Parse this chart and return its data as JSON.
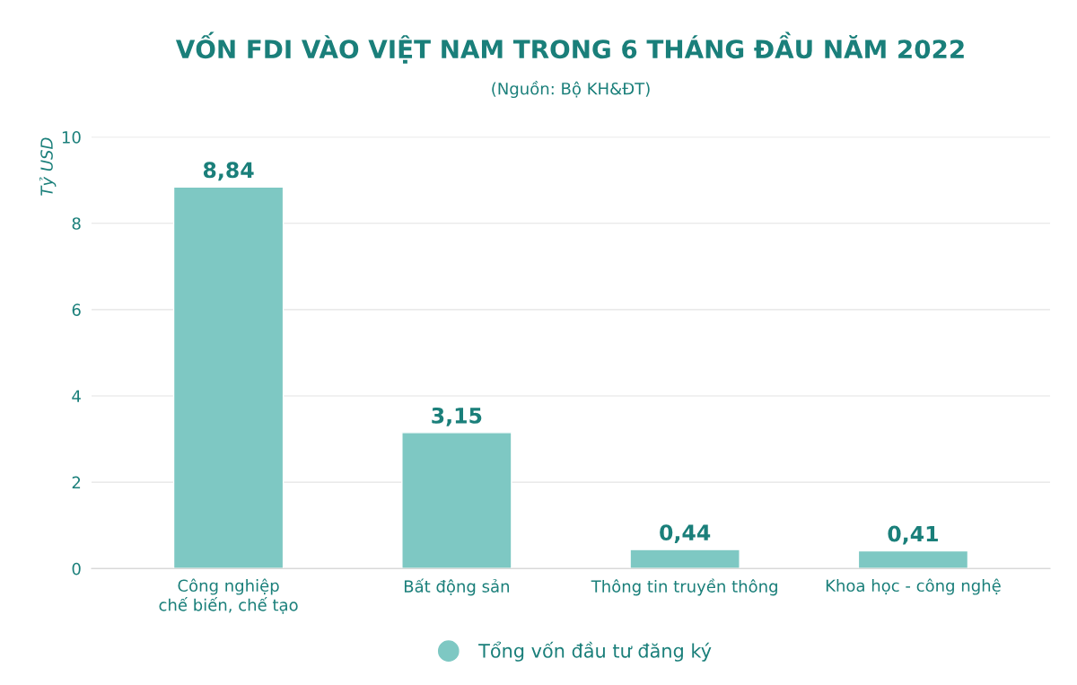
{
  "chart_data": {
    "type": "bar",
    "title": "VỐN FDI VÀO VIỆT NAM TRONG 6 THÁNG ĐẦU NĂM 2022",
    "subtitle": "(Nguồn: Bộ KH&ĐT)",
    "ylabel": "Tỷ USD",
    "categories": [
      "Công nghiệp\nchế biến, chế tạo",
      "Bất động sản",
      "Thông tin truyền thông",
      "Khoa học - công nghệ"
    ],
    "series": [
      {
        "name": "Tổng vốn đầu tư đăng ký",
        "color": "#7ec8c3",
        "values": [
          8.84,
          3.15,
          0.44,
          0.41
        ]
      }
    ],
    "value_labels": [
      "8,84",
      "3,15",
      "0,44",
      "0,41"
    ],
    "ylim": [
      0,
      10
    ],
    "yticks": [
      0,
      2,
      4,
      6,
      8,
      10
    ],
    "grid": "y",
    "legend": "bottom"
  }
}
